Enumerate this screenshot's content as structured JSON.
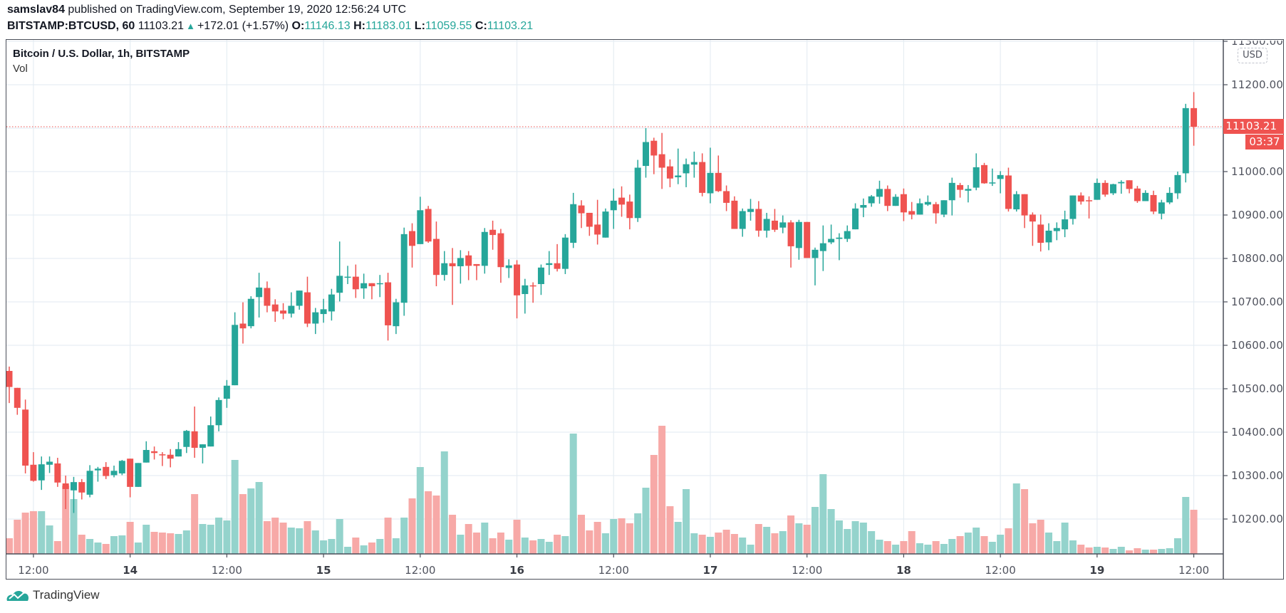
{
  "header": {
    "publisher": "samslav84",
    "published_text": "published on TradingView.com, September 19, 2020 12:56:24 UTC",
    "symbol": "BITSTAMP:BTCUSD, 60",
    "last": "11103.21",
    "change": "+172.01 (+1.57%)",
    "o_label": "O:",
    "o_value": "11146.13",
    "h_label": "H:",
    "h_value": "11183.01",
    "l_label": "L:",
    "l_value": "11059.55",
    "c_label": "C:",
    "c_value": "11103.21",
    "change_icon": "triangle-up-icon"
  },
  "legend": {
    "title": "Bitcoin / U.S. Dollar, 1h, BITSTAMP",
    "volume": "Vol"
  },
  "price_axis": {
    "currency": "USD",
    "labels": [
      "11300.00",
      "11200.00",
      "11000.00",
      "10900.00",
      "10800.00",
      "10700.00",
      "10600.00",
      "10500.00",
      "10400.00",
      "10300.00",
      "10200.00"
    ],
    "last_price_label": "11103.21",
    "countdown": "03:37"
  },
  "footer": {
    "brand": "TradingView"
  },
  "colors": {
    "up": "#26a69a",
    "down": "#ef5350",
    "up_volume": "#94d3cc",
    "down_volume": "#f7a9a7",
    "grid": "#e6edf3"
  },
  "chart_data": {
    "type": "candlestick",
    "title": "Bitcoin / U.S. Dollar, 1h, BITSTAMP",
    "interval": "1h",
    "ylabel": "USD",
    "ylim": [
      10110,
      11310
    ],
    "grid": true,
    "price_ticks": [
      11300,
      11200,
      11100,
      11000,
      10900,
      10800,
      10700,
      10600,
      10500,
      10400,
      10300,
      10200
    ],
    "time_ticks": [
      {
        "index": 3,
        "label": "12:00",
        "day": false
      },
      {
        "index": 15,
        "label": "14",
        "day": true
      },
      {
        "index": 27,
        "label": "12:00",
        "day": false
      },
      {
        "index": 39,
        "label": "15",
        "day": true
      },
      {
        "index": 51,
        "label": "12:00",
        "day": false
      },
      {
        "index": 63,
        "label": "16",
        "day": true
      },
      {
        "index": 75,
        "label": "12:00",
        "day": false
      },
      {
        "index": 87,
        "label": "17",
        "day": true
      },
      {
        "index": 99,
        "label": "12:00",
        "day": false
      },
      {
        "index": 111,
        "label": "18",
        "day": true
      },
      {
        "index": 123,
        "label": "12:00",
        "day": false
      },
      {
        "index": 135,
        "label": "19",
        "day": true
      },
      {
        "index": 147,
        "label": "12:00",
        "day": false
      }
    ],
    "last_price": 11103.21,
    "candle_fields": [
      "open",
      "high",
      "low",
      "close",
      "volume_relative"
    ],
    "candles": [
      [
        10541,
        10551,
        10467,
        10504,
        22
      ],
      [
        10502,
        10502,
        10440,
        10456,
        48
      ],
      [
        10452,
        10475,
        10305,
        10323,
        58
      ],
      [
        10325,
        10354,
        10286,
        10288,
        60
      ],
      [
        10289,
        10344,
        10267,
        10326,
        60
      ],
      [
        10325,
        10344,
        10306,
        10332,
        40
      ],
      [
        10328,
        10341,
        10274,
        10284,
        18
      ],
      [
        10282,
        10300,
        10223,
        10269,
        96
      ],
      [
        10266,
        10297,
        10214,
        10285,
        77
      ],
      [
        10285,
        10292,
        10245,
        10261,
        27
      ],
      [
        10256,
        10324,
        10250,
        10311,
        21
      ],
      [
        10312,
        10320,
        10286,
        10316,
        16
      ],
      [
        10320,
        10331,
        10292,
        10299,
        14
      ],
      [
        10301,
        10323,
        10296,
        10311,
        25
      ],
      [
        10305,
        10336,
        10301,
        10334,
        26
      ],
      [
        10339,
        10339,
        10250,
        10274,
        45
      ],
      [
        10274,
        10329,
        10274,
        10329,
        16
      ],
      [
        10330,
        10379,
        10330,
        10359,
        41
      ],
      [
        10356,
        10367,
        10337,
        10352,
        31
      ],
      [
        10349,
        10354,
        10322,
        10347,
        30
      ],
      [
        10348,
        10361,
        10319,
        10339,
        29
      ],
      [
        10344,
        10377,
        10344,
        10361,
        28
      ],
      [
        10366,
        10405,
        10352,
        10403,
        33
      ],
      [
        10402,
        10459,
        10341,
        10364,
        84
      ],
      [
        10364,
        10372,
        10328,
        10372,
        42
      ],
      [
        10367,
        10436,
        10367,
        10416,
        41
      ],
      [
        10416,
        10480,
        10402,
        10474,
        51
      ],
      [
        10477,
        10520,
        10456,
        10507,
        47
      ],
      [
        10508,
        10676,
        10508,
        10647,
        132
      ],
      [
        10650,
        10699,
        10604,
        10639,
        84
      ],
      [
        10644,
        10713,
        10639,
        10707,
        92
      ],
      [
        10711,
        10767,
        10664,
        10733,
        101
      ],
      [
        10732,
        10747,
        10676,
        10691,
        46
      ],
      [
        10694,
        10706,
        10654,
        10678,
        51
      ],
      [
        10680,
        10697,
        10660,
        10673,
        44
      ],
      [
        10673,
        10722,
        10664,
        10691,
        37
      ],
      [
        10691,
        10726,
        10682,
        10726,
        36
      ],
      [
        10722,
        10758,
        10642,
        10650,
        46
      ],
      [
        10650,
        10686,
        10626,
        10676,
        33
      ],
      [
        10672,
        10707,
        10652,
        10683,
        19
      ],
      [
        10678,
        10730,
        10657,
        10717,
        21
      ],
      [
        10721,
        10839,
        10701,
        10760,
        49
      ],
      [
        10757,
        10783,
        10741,
        10758,
        10
      ],
      [
        10758,
        10786,
        10709,
        10729,
        23
      ],
      [
        10731,
        10765,
        10707,
        10743,
        12
      ],
      [
        10743,
        10743,
        10706,
        10736,
        16
      ],
      [
        10741,
        10762,
        10711,
        10743,
        21
      ],
      [
        10745,
        10767,
        10611,
        10646,
        51
      ],
      [
        10644,
        10707,
        10626,
        10699,
        22
      ],
      [
        10698,
        10871,
        10668,
        10856,
        51
      ],
      [
        10863,
        10881,
        10779,
        10829,
        78
      ],
      [
        10833,
        10942,
        10833,
        10911,
        122
      ],
      [
        10914,
        10921,
        10836,
        10839,
        88
      ],
      [
        10845,
        10885,
        10736,
        10762,
        82
      ],
      [
        10762,
        10817,
        10749,
        10789,
        144
      ],
      [
        10789,
        10824,
        10693,
        10782,
        55
      ],
      [
        10782,
        10819,
        10742,
        10801,
        27
      ],
      [
        10807,
        10817,
        10750,
        10783,
        42
      ],
      [
        10787,
        10787,
        10750,
        10783,
        30
      ],
      [
        10783,
        10870,
        10765,
        10861,
        44
      ],
      [
        10866,
        10887,
        10820,
        10854,
        22
      ],
      [
        10858,
        10868,
        10744,
        10780,
        30
      ],
      [
        10778,
        10798,
        10755,
        10784,
        20
      ],
      [
        10786,
        10796,
        10662,
        10715,
        48
      ],
      [
        10718,
        10753,
        10673,
        10738,
        23
      ],
      [
        10738,
        10745,
        10698,
        10736,
        19
      ],
      [
        10741,
        10786,
        10716,
        10779,
        21
      ],
      [
        10785,
        10817,
        10762,
        10789,
        17
      ],
      [
        10789,
        10833,
        10770,
        10776,
        27
      ],
      [
        10776,
        10856,
        10764,
        10848,
        25
      ],
      [
        10836,
        10951,
        10824,
        10925,
        169
      ],
      [
        10922,
        10934,
        10870,
        10904,
        55
      ],
      [
        10905,
        10905,
        10852,
        10873,
        33
      ],
      [
        10878,
        10935,
        10832,
        10855,
        45
      ],
      [
        10848,
        10915,
        10848,
        10908,
        29
      ],
      [
        10911,
        10961,
        10868,
        10933,
        49
      ],
      [
        10940,
        10966,
        10896,
        10924,
        50
      ],
      [
        10931,
        10947,
        10867,
        10893,
        43
      ],
      [
        10893,
        11027,
        10884,
        11009,
        57
      ],
      [
        11013,
        11100,
        10986,
        11068,
        93
      ],
      [
        11071,
        11078,
        10994,
        11037,
        139
      ],
      [
        11040,
        11089,
        10960,
        11009,
        180
      ],
      [
        11012,
        11028,
        10964,
        10984,
        67
      ],
      [
        10987,
        11053,
        10971,
        10991,
        45
      ],
      [
        10996,
        11030,
        10964,
        11017,
        91
      ],
      [
        11016,
        11046,
        10986,
        11022,
        29
      ],
      [
        11022,
        11042,
        10943,
        10951,
        27
      ],
      [
        10950,
        11055,
        10927,
        10997,
        24
      ],
      [
        10997,
        11037,
        10953,
        10955,
        30
      ],
      [
        10955,
        10968,
        10909,
        10928,
        34
      ],
      [
        10933,
        10943,
        10868,
        10868,
        28
      ],
      [
        10868,
        10915,
        10850,
        10909,
        23
      ],
      [
        10907,
        10937,
        10887,
        10914,
        13
      ],
      [
        10914,
        10932,
        10850,
        10864,
        42
      ],
      [
        10864,
        10905,
        10848,
        10891,
        38
      ],
      [
        10887,
        10914,
        10861,
        10866,
        29
      ],
      [
        10871,
        10899,
        10858,
        10883,
        32
      ],
      [
        10883,
        10888,
        10779,
        10828,
        54
      ],
      [
        10824,
        10889,
        10797,
        10884,
        43
      ],
      [
        10884,
        10884,
        10801,
        10801,
        41
      ],
      [
        10801,
        10825,
        10738,
        10820,
        66
      ],
      [
        10817,
        10876,
        10771,
        10835,
        112
      ],
      [
        10837,
        10878,
        10833,
        10845,
        63
      ],
      [
        10845,
        10858,
        10796,
        10848,
        47
      ],
      [
        10845,
        10876,
        10838,
        10863,
        35
      ],
      [
        10867,
        10927,
        10867,
        10915,
        46
      ],
      [
        10917,
        10938,
        10895,
        10923,
        44
      ],
      [
        10927,
        10946,
        10919,
        10943,
        32
      ],
      [
        10942,
        10979,
        10926,
        10960,
        20
      ],
      [
        10960,
        10968,
        10909,
        10921,
        18
      ],
      [
        10921,
        10948,
        10921,
        10942,
        13
      ],
      [
        10948,
        10961,
        10886,
        10906,
        18
      ],
      [
        10909,
        10930,
        10890,
        10901,
        32
      ],
      [
        10901,
        10938,
        10901,
        10927,
        15
      ],
      [
        10924,
        10945,
        10921,
        10930,
        13
      ],
      [
        10925,
        10930,
        10880,
        10904,
        18
      ],
      [
        10901,
        10934,
        10895,
        10934,
        14
      ],
      [
        10934,
        10986,
        10899,
        10974,
        21
      ],
      [
        10969,
        10974,
        10940,
        10958,
        25
      ],
      [
        10956,
        10969,
        10929,
        10960,
        30
      ],
      [
        10963,
        11042,
        10957,
        11010,
        37
      ],
      [
        11015,
        11020,
        10972,
        10973,
        25
      ],
      [
        10973,
        11007,
        10967,
        10975,
        17
      ],
      [
        10983,
        11001,
        10950,
        10992,
        27
      ],
      [
        10991,
        11009,
        10908,
        10914,
        36
      ],
      [
        10913,
        10955,
        10908,
        10948,
        99
      ],
      [
        10948,
        10948,
        10870,
        10899,
        91
      ],
      [
        10901,
        10906,
        10829,
        10885,
        43
      ],
      [
        10878,
        10901,
        10816,
        10836,
        48
      ],
      [
        10837,
        10881,
        10819,
        10864,
        30
      ],
      [
        10863,
        10883,
        10842,
        10870,
        18
      ],
      [
        10867,
        10910,
        10849,
        10890,
        44
      ],
      [
        10891,
        10945,
        10878,
        10945,
        19
      ],
      [
        10945,
        10952,
        10924,
        10931,
        13
      ],
      [
        10934,
        10943,
        10892,
        10932,
        9
      ],
      [
        10935,
        10984,
        10935,
        10974,
        10
      ],
      [
        10974,
        10980,
        10942,
        10947,
        9
      ],
      [
        10950,
        10972,
        10946,
        10971,
        7
      ],
      [
        10973,
        10980,
        10949,
        10976,
        10
      ],
      [
        10980,
        10980,
        10950,
        10960,
        5
      ],
      [
        10961,
        10967,
        10928,
        10932,
        8
      ],
      [
        10932,
        10957,
        10932,
        10951,
        6
      ],
      [
        10946,
        10956,
        10902,
        10908,
        6
      ],
      [
        10903,
        10935,
        10890,
        10929,
        7
      ],
      [
        10929,
        10964,
        10925,
        10951,
        8
      ],
      [
        10950,
        11000,
        10937,
        10992,
        22
      ],
      [
        10996,
        11156,
        10975,
        11146.13,
        80
      ],
      [
        11146.13,
        11183.01,
        11059.55,
        11103.21,
        62
      ]
    ]
  }
}
